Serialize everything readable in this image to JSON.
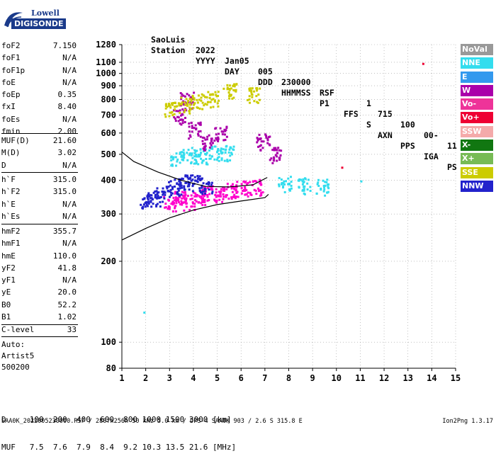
{
  "header": {
    "row1": [
      "Station",
      "YYYY",
      "DAY",
      "DDD",
      "HHMMSS",
      "P1",
      "FFS",
      "S",
      "AXN",
      "PPS",
      "IGA",
      "PS"
    ],
    "row2": [
      "SaoLuis",
      "2022",
      "Jan05",
      "005",
      "230000",
      "RSF",
      "",
      "1",
      "715",
      "100",
      "00-",
      "11"
    ]
  },
  "logo": {
    "line1": "Lowell",
    "line2": "DIGISONDE"
  },
  "params_group1": [
    {
      "name": "foF2",
      "value": "7.150"
    },
    {
      "name": "foF1",
      "value": "N/A"
    },
    {
      "name": "foF1p",
      "value": "N/A"
    },
    {
      "name": "foE",
      "value": "N/A"
    },
    {
      "name": "foEp",
      "value": "0.35"
    },
    {
      "name": "fxI",
      "value": "8.40"
    },
    {
      "name": "foEs",
      "value": "N/A"
    },
    {
      "name": "fmin",
      "value": "2.00"
    }
  ],
  "params_group2": [
    {
      "name": "MUF(D)",
      "value": "21.60"
    },
    {
      "name": "M(D)",
      "value": "3.02"
    },
    {
      "name": "D",
      "value": "N/A"
    }
  ],
  "params_group3": [
    {
      "name": "h`F",
      "value": "315.0"
    },
    {
      "name": "h`F2",
      "value": "315.0"
    },
    {
      "name": "h`E",
      "value": "N/A"
    },
    {
      "name": "h`Es",
      "value": "N/A"
    }
  ],
  "params_group4": [
    {
      "name": "hmF2",
      "value": "355.7"
    },
    {
      "name": "hmF1",
      "value": "N/A"
    },
    {
      "name": "hmE",
      "value": "110.0"
    },
    {
      "name": "yF2",
      "value": "41.8"
    },
    {
      "name": "yF1",
      "value": "N/A"
    },
    {
      "name": "yE",
      "value": "20.0"
    },
    {
      "name": "B0",
      "value": "52.2"
    },
    {
      "name": "B1",
      "value": "1.02"
    }
  ],
  "params_group5": [
    {
      "name": "C-level",
      "value": "33"
    }
  ],
  "auto": [
    "Auto:",
    "Artist5",
    "500200"
  ],
  "legend": [
    {
      "label": "NoVal",
      "color": "#999999"
    },
    {
      "label": "NNE",
      "color": "#33ddee"
    },
    {
      "label": "E",
      "color": "#3399ee"
    },
    {
      "label": "W",
      "color": "#aa00aa"
    },
    {
      "label": "Vo-",
      "color": "#ee3399"
    },
    {
      "label": "Vo+",
      "color": "#ee0033"
    },
    {
      "label": "SSW",
      "color": "#f4aaaa"
    },
    {
      "label": "X-",
      "color": "#117711"
    },
    {
      "label": "X+",
      "color": "#77bb55"
    },
    {
      "label": "SSE",
      "color": "#cccc00"
    },
    {
      "label": "NNW",
      "color": "#2222cc"
    }
  ],
  "bottom": {
    "row1": "D     100  200  400  600  800 1000 1500 3000 [km]",
    "row2": "MUF   7.5  7.6  7.9  8.4  9.2 10.3 13.5 21.6 [MHz]"
  },
  "footer": {
    "left": "SAA0K_2022005230000.RSF / 280fx256h 50 kHz 5.0 km / DPS-4 SAA0K 903 / 2.6 S 315.8 E",
    "right": "Ion2Png 1.3.17"
  },
  "chart_data": {
    "type": "scatter",
    "xlim": [
      1,
      15
    ],
    "ylim": [
      80,
      1280
    ],
    "y_scale": "log",
    "x_ticks": [
      1,
      2,
      3,
      4,
      5,
      6,
      7,
      8,
      9,
      10,
      11,
      12,
      13,
      14,
      15
    ],
    "y_ticks": [
      80,
      100,
      200,
      300,
      400,
      500,
      600,
      700,
      800,
      900,
      1000,
      1100,
      1280
    ],
    "grid": true,
    "series": [
      {
        "color": "#ff00cc",
        "points": [
          [
            3.0,
            330
          ],
          [
            3.4,
            345
          ],
          [
            3.8,
            335
          ],
          [
            4.2,
            350
          ],
          [
            4.6,
            360
          ],
          [
            5.0,
            355
          ],
          [
            5.5,
            370
          ],
          [
            6.0,
            375
          ],
          [
            6.6,
            380
          ]
        ]
      },
      {
        "color": "#2222cc",
        "points": [
          [
            2.0,
            340
          ],
          [
            2.3,
            345
          ],
          [
            2.7,
            360
          ],
          [
            3.2,
            380
          ],
          [
            3.6,
            400
          ],
          [
            4.0,
            395
          ],
          [
            4.5,
            385
          ]
        ]
      },
      {
        "color": "#33ddee",
        "points": [
          [
            3.3,
            490
          ],
          [
            3.8,
            500
          ],
          [
            4.3,
            495
          ],
          [
            4.9,
            505
          ],
          [
            5.4,
            510
          ],
          [
            7.8,
            390
          ],
          [
            8.6,
            385
          ],
          [
            9.4,
            380
          ]
        ]
      },
      {
        "color": "#aa00aa",
        "points": [
          [
            3.4,
            700
          ],
          [
            3.7,
            800
          ],
          [
            4.0,
            620
          ],
          [
            4.6,
            560
          ],
          [
            5.1,
            600
          ],
          [
            6.9,
            560
          ],
          [
            7.4,
            500
          ]
        ]
      },
      {
        "color": "#cccc00",
        "points": [
          [
            3.0,
            740
          ],
          [
            3.6,
            770
          ],
          [
            4.2,
            790
          ],
          [
            4.8,
            810
          ],
          [
            5.5,
            870
          ],
          [
            6.5,
            840
          ]
        ]
      },
      {
        "color": "#ee0033",
        "points": [
          [
            10.2,
            450
          ],
          [
            13.6,
            1095
          ]
        ]
      },
      {
        "color": "#33ddee",
        "points": [
          [
            1.9,
            130
          ],
          [
            11.0,
            400
          ]
        ]
      }
    ],
    "trace_profile": [
      [
        1.0,
        240
      ],
      [
        2.0,
        265
      ],
      [
        3.0,
        290
      ],
      [
        4.0,
        310
      ],
      [
        5.0,
        325
      ],
      [
        6.0,
        335
      ],
      [
        7.0,
        345
      ],
      [
        7.15,
        355
      ]
    ],
    "trace_upper": [
      [
        1.0,
        510
      ],
      [
        1.5,
        470
      ],
      [
        2.5,
        430
      ],
      [
        3.5,
        400
      ],
      [
        4.5,
        380
      ],
      [
        5.5,
        378
      ],
      [
        6.5,
        385
      ],
      [
        7.1,
        410
      ]
    ]
  }
}
